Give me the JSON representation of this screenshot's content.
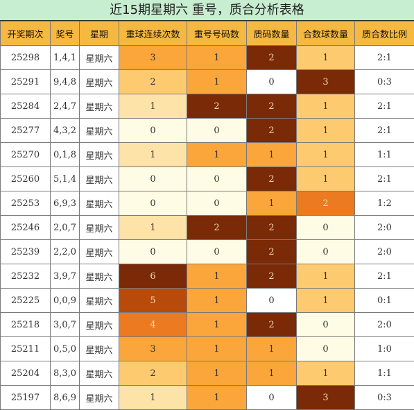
{
  "title": "近15期星期六 重号，质合分析表格",
  "headers": [
    "开奖期次",
    "奖号",
    "星期",
    "重球连续次数",
    "重号号码数",
    "质码数量",
    "合数球数量",
    "质合数比例"
  ],
  "rows": [
    {
      "issue": "25298",
      "numbers": "1,4,1",
      "weekday": "星期六",
      "repeat_streak": "3",
      "repeat_count": "1",
      "prime_count": "2",
      "composite_count": "1",
      "ratio": "2:1"
    },
    {
      "issue": "25291",
      "numbers": "9,4,8",
      "weekday": "星期六",
      "repeat_streak": "2",
      "repeat_count": "1",
      "prime_count": "0",
      "composite_count": "3",
      "ratio": "0:3"
    },
    {
      "issue": "25284",
      "numbers": "2,4,7",
      "weekday": "星期六",
      "repeat_streak": "1",
      "repeat_count": "2",
      "prime_count": "2",
      "composite_count": "1",
      "ratio": "2:1"
    },
    {
      "issue": "25277",
      "numbers": "4,3,2",
      "weekday": "星期六",
      "repeat_streak": "0",
      "repeat_count": "0",
      "prime_count": "2",
      "composite_count": "1",
      "ratio": "2:1"
    },
    {
      "issue": "25270",
      "numbers": "0,1,8",
      "weekday": "星期六",
      "repeat_streak": "1",
      "repeat_count": "1",
      "prime_count": "1",
      "composite_count": "1",
      "ratio": "1:1"
    },
    {
      "issue": "25260",
      "numbers": "5,1,4",
      "weekday": "星期六",
      "repeat_streak": "0",
      "repeat_count": "0",
      "prime_count": "2",
      "composite_count": "1",
      "ratio": "2:1"
    },
    {
      "issue": "25253",
      "numbers": "6,9,3",
      "weekday": "星期六",
      "repeat_streak": "0",
      "repeat_count": "0",
      "prime_count": "1",
      "composite_count": "2",
      "ratio": "1:2"
    },
    {
      "issue": "25246",
      "numbers": "2,0,7",
      "weekday": "星期六",
      "repeat_streak": "1",
      "repeat_count": "2",
      "prime_count": "2",
      "composite_count": "0",
      "ratio": "2:0"
    },
    {
      "issue": "25239",
      "numbers": "2,2,0",
      "weekday": "星期六",
      "repeat_streak": "0",
      "repeat_count": "0",
      "prime_count": "2",
      "composite_count": "0",
      "ratio": "2:0"
    },
    {
      "issue": "25232",
      "numbers": "3,9,7",
      "weekday": "星期六",
      "repeat_streak": "6",
      "repeat_count": "1",
      "prime_count": "2",
      "composite_count": "1",
      "ratio": "2:1"
    },
    {
      "issue": "25225",
      "numbers": "0,0,9",
      "weekday": "星期六",
      "repeat_streak": "5",
      "repeat_count": "1",
      "prime_count": "0",
      "composite_count": "1",
      "ratio": "0:1"
    },
    {
      "issue": "25218",
      "numbers": "3,0,7",
      "weekday": "星期六",
      "repeat_streak": "4",
      "repeat_count": "1",
      "prime_count": "2",
      "composite_count": "0",
      "ratio": "2:0"
    },
    {
      "issue": "25211",
      "numbers": "0,5,0",
      "weekday": "星期六",
      "repeat_streak": "3",
      "repeat_count": "1",
      "prime_count": "1",
      "composite_count": "0",
      "ratio": "1:0"
    },
    {
      "issue": "25204",
      "numbers": "8,3,0",
      "weekday": "星期六",
      "repeat_streak": "2",
      "repeat_count": "1",
      "prime_count": "1",
      "composite_count": "1",
      "ratio": "1:1"
    },
    {
      "issue": "25197",
      "numbers": "8,6,9",
      "weekday": "星期六",
      "repeat_streak": "1",
      "repeat_count": "1",
      "prime_count": "0",
      "composite_count": "3",
      "ratio": "0:3"
    }
  ],
  "colors": {
    "title_bg": "#c8eed1",
    "header_bg": "#f5b840",
    "scale": [
      "#fefce4",
      "#fde3a7",
      "#fdca70",
      "#fba63a",
      "#eb7a20",
      "#d86010",
      "#b84a0b",
      "#7a2a07"
    ]
  }
}
